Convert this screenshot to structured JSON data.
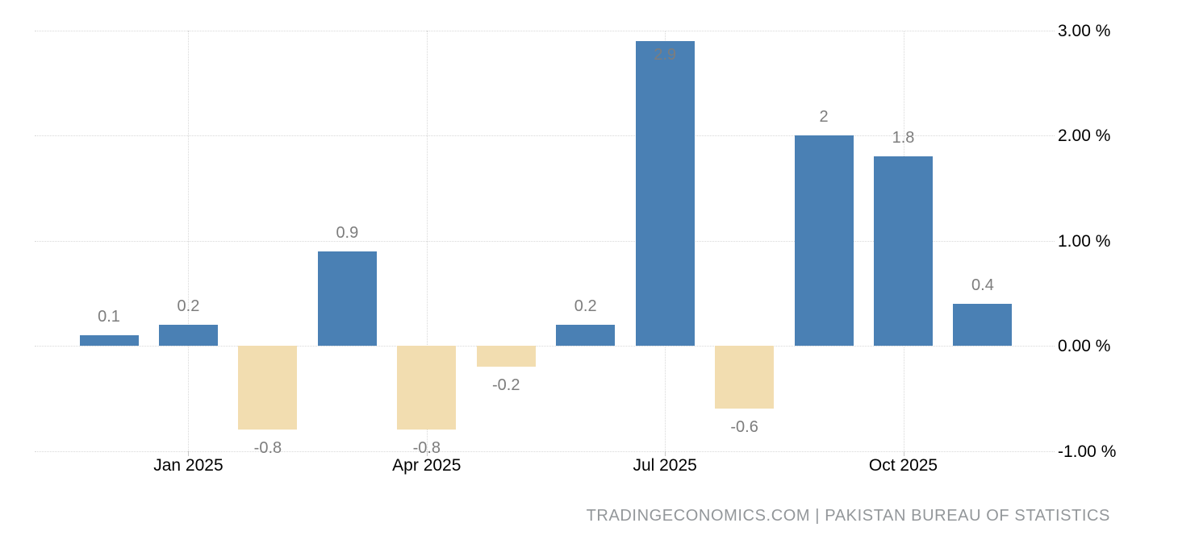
{
  "footer": {
    "text": "TRADINGECONOMICS.COM | PAKISTAN BUREAU OF STATISTICS"
  },
  "chart_data": {
    "type": "bar",
    "values": [
      0.1,
      0.2,
      -0.8,
      0.9,
      -0.8,
      -0.2,
      0.2,
      2.9,
      -0.6,
      2,
      1.8,
      0.4
    ],
    "bar_labels": [
      "0.1",
      "0.2",
      "-0.8",
      "0.9",
      "-0.8",
      "-0.2",
      "0.2",
      "2.9",
      "-0.6",
      "2",
      "1.8",
      "0.4"
    ],
    "x_tick_labels": [
      "Jan 2025",
      "Apr 2025",
      "Jul 2025",
      "Oct 2025"
    ],
    "x_tick_indices": [
      1,
      4,
      7,
      10
    ],
    "y_ticks": [
      3,
      2,
      1,
      0,
      -1
    ],
    "y_tick_labels": [
      "3.00 %",
      "2.00 %",
      "1.00 %",
      "0.00 %",
      "-1.00 %"
    ],
    "ylim": [
      -1,
      3
    ],
    "y_axis_position": "right",
    "grid": true,
    "colors": {
      "positive_bar": "#4a80b4",
      "negative_bar": "#f2ddb0",
      "gridline": "#d8d8d8",
      "value_label": "#7d7d7d",
      "axis_label": "#000000",
      "footer_text": "#93979a",
      "background": "#ffffff"
    }
  }
}
